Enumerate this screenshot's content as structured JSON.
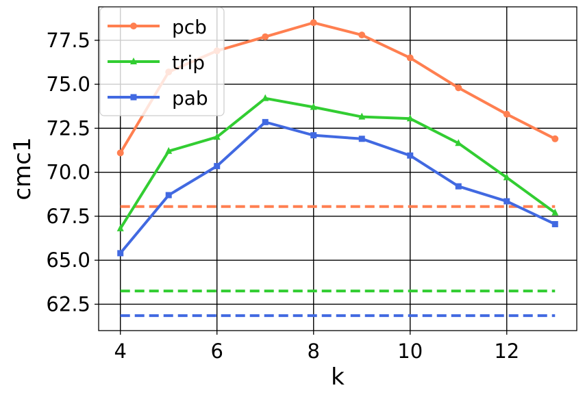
{
  "chart_data": {
    "type": "line",
    "xlabel": "k",
    "ylabel": "cmc1",
    "xlim": [
      3.55,
      13.45
    ],
    "ylim": [
      61.0,
      79.4
    ],
    "xticks": [
      4,
      6,
      8,
      10,
      12
    ],
    "yticks": [
      62.5,
      65.0,
      67.5,
      70.0,
      72.5,
      75.0,
      77.5
    ],
    "ytick_labels": [
      "62.5",
      "65.0",
      "67.5",
      "70.0",
      "72.5",
      "75.0",
      "77.5"
    ],
    "grid": true,
    "legend_position": "top-left",
    "x": [
      4,
      5,
      6,
      7,
      8,
      9,
      10,
      11,
      12,
      13
    ],
    "series": [
      {
        "name": "pcb",
        "color": "#FF7F50",
        "marker": "circle",
        "values": [
          71.1,
          75.7,
          76.9,
          77.7,
          78.5,
          77.8,
          76.5,
          74.8,
          73.3,
          71.9
        ],
        "baseline": 68.05
      },
      {
        "name": "trip",
        "color": "#32CD32",
        "marker": "triangle",
        "values": [
          66.8,
          71.2,
          72.0,
          74.2,
          73.7,
          73.15,
          73.05,
          71.65,
          69.7,
          67.7
        ],
        "baseline": 63.25
      },
      {
        "name": "pab",
        "color": "#4169E1",
        "marker": "square",
        "values": [
          65.4,
          68.7,
          70.35,
          72.85,
          72.1,
          71.9,
          70.95,
          69.2,
          68.35,
          67.05
        ],
        "baseline": 61.85
      }
    ]
  }
}
